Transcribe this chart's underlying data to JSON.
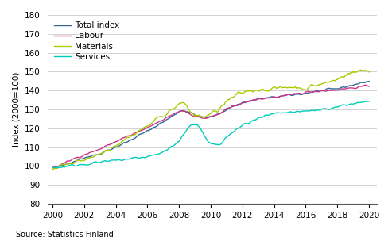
{
  "title": "",
  "ylabel": "Index (2000=100)",
  "xlabel": "",
  "source": "Source: Statistics Finland",
  "ylim": [
    80,
    180
  ],
  "yticks": [
    80,
    90,
    100,
    110,
    120,
    130,
    140,
    150,
    160,
    170,
    180
  ],
  "xticks": [
    2000,
    2002,
    2004,
    2006,
    2008,
    2010,
    2012,
    2014,
    2016,
    2018,
    2020
  ],
  "xlim": [
    1999.7,
    2020.5
  ],
  "colors": {
    "total": "#336699",
    "labour": "#CC3388",
    "materials": "#AACC00",
    "services": "#00CCBB"
  },
  "legend": [
    "Total index",
    "Labour",
    "Materials",
    "Services"
  ],
  "x_start": 2000.0,
  "x_step": 0.08333333333
}
